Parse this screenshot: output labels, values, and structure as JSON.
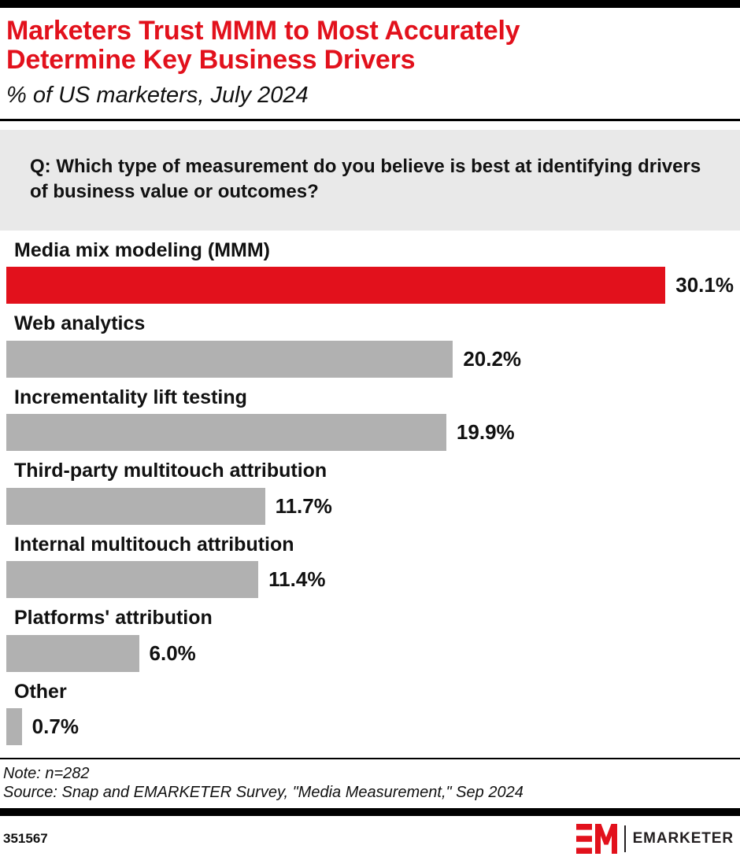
{
  "header": {
    "title_lines": [
      "Marketers Trust MMM to Most Accurately",
      "Determine Key Business Drivers"
    ],
    "subtitle": "% of US marketers, July 2024"
  },
  "question": "Q: Which type of measurement do you believe is best at identifying drivers of business value or outcomes?",
  "chart_data": {
    "type": "bar",
    "orientation": "horizontal",
    "title": "Marketers Trust MMM to Most Accurately Determine Key Business Drivers",
    "subtitle": "% of US marketers, July 2024",
    "categories": [
      "Media mix modeling (MMM)",
      "Web analytics",
      "Incrementality lift testing",
      "Third-party multitouch attribution",
      "Internal multitouch attribution",
      "Platforms' attribution",
      "Other"
    ],
    "values": [
      30.1,
      20.2,
      19.9,
      11.7,
      11.4,
      6.0,
      0.7
    ],
    "value_labels": [
      "30.1%",
      "20.2%",
      "19.9%",
      "11.7%",
      "11.4%",
      "6.0%",
      "0.7%"
    ],
    "xlim": [
      0,
      32.9
    ],
    "grid": false,
    "legend": "none",
    "value_label_position": "right-of-bar",
    "highlight_index": 0,
    "highlight_color": "#e2111c",
    "bar_color": "#b1b1b1"
  },
  "footnote": {
    "note": "Note: n=282",
    "source": "Source: Snap and EMARKETER Survey, \"Media Measurement,\" Sep 2024"
  },
  "footer": {
    "chart_id": "351567",
    "brand": "EMARKETER"
  },
  "colors": {
    "accent_red": "#e2111c",
    "bar_gray": "#b1b1b1",
    "question_box_bg": "#e9e9e9",
    "border_black": "#000000"
  }
}
